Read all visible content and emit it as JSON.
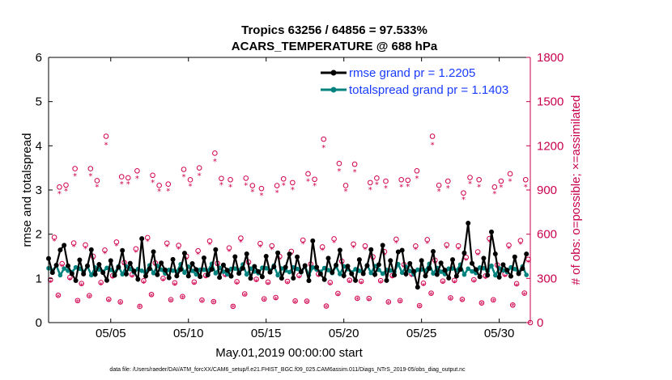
{
  "chart_data": {
    "type": "line",
    "title_line1": "Tropics 63256 / 64856 = 97.533%",
    "title_line2": "ACARS_TEMPERATURE @ 688 hPa",
    "xlabel": "May.01,2019 00:00:00 start",
    "ylabel_left": "rmse and totalspread",
    "ylabel_right": "# of obs: o=possible; ×=assimilated",
    "footer": "data file: /Users/raeder/DAI/ATM_forcXX/CAM6_setup/f.e21.FHIST_BGC.f09_025.CAM6assim.011/Diags_NTrS_2019-05/obs_diag_output.nc",
    "x_range_days": [
      1,
      32
    ],
    "x_ticks": [
      {
        "day": 5,
        "label": "05/05"
      },
      {
        "day": 10,
        "label": "05/10"
      },
      {
        "day": 15,
        "label": "05/15"
      },
      {
        "day": 20,
        "label": "05/20"
      },
      {
        "day": 25,
        "label": "05/25"
      },
      {
        "day": 30,
        "label": "05/30"
      }
    ],
    "ylim_left": [
      0,
      6
    ],
    "yticks_left": [
      "0",
      "1",
      "2",
      "3",
      "4",
      "5",
      "6"
    ],
    "ylim_right": [
      0,
      1800
    ],
    "yticks_right": [
      "0",
      "300",
      "600",
      "900",
      "1200",
      "1500",
      "1800"
    ],
    "legend": [
      {
        "label": "rmse grand pr = 1.2205",
        "color": "#000000"
      },
      {
        "label": "totalspread grand pr = 1.1403",
        "color": "#00827f"
      }
    ],
    "colors": {
      "rmse": "#000000",
      "spread": "#00827f",
      "obs": "#d0004e"
    },
    "rmse_pattern": [
      1.45,
      1.1,
      1.25,
      1.6,
      1.05,
      1.3,
      1.15,
      1.0
    ],
    "spread_pattern": [
      1.2,
      1.15,
      1.3,
      1.1,
      1.25,
      1.18,
      1.12,
      1.22
    ],
    "obs_possible_pattern": [
      290,
      550,
      170,
      420,
      960,
      300,
      510,
      140
    ],
    "obs_assimilated_ratio": 0.96,
    "obs_peaks": [
      {
        "day": 1.7,
        "possible": 920
      },
      {
        "day": 2.7,
        "possible": 1045
      },
      {
        "day": 3.7,
        "possible": 1045
      },
      {
        "day": 4.7,
        "possible": 1265
      },
      {
        "day": 5.7,
        "possible": 990
      },
      {
        "day": 6.7,
        "possible": 1030
      },
      {
        "day": 7.7,
        "possible": 1000
      },
      {
        "day": 8.7,
        "possible": 940
      },
      {
        "day": 9.7,
        "possible": 1040
      },
      {
        "day": 10.7,
        "possible": 1050
      },
      {
        "day": 11.7,
        "possible": 1150
      },
      {
        "day": 12.7,
        "possible": 970
      },
      {
        "day": 13.7,
        "possible": 980
      },
      {
        "day": 14.7,
        "possible": 910
      },
      {
        "day": 15.7,
        "possible": 930
      },
      {
        "day": 16.7,
        "possible": 950
      },
      {
        "day": 17.7,
        "possible": 1010
      },
      {
        "day": 18.7,
        "possible": 1245
      },
      {
        "day": 19.7,
        "possible": 1080
      },
      {
        "day": 20.7,
        "possible": 1075
      },
      {
        "day": 21.7,
        "possible": 950
      },
      {
        "day": 22.7,
        "possible": 960
      },
      {
        "day": 23.7,
        "possible": 970
      },
      {
        "day": 24.7,
        "possible": 1030
      },
      {
        "day": 25.7,
        "possible": 1265
      },
      {
        "day": 26.7,
        "possible": 960
      },
      {
        "day": 27.7,
        "possible": 880
      },
      {
        "day": 28.7,
        "possible": 970
      },
      {
        "day": 29.7,
        "possible": 920
      },
      {
        "day": 30.7,
        "possible": 1010
      },
      {
        "day": 31.7,
        "possible": 970
      }
    ],
    "rmse_spikes": [
      {
        "day": 2.0,
        "value": 1.75
      },
      {
        "day": 7.1,
        "value": 1.9
      },
      {
        "day": 11.7,
        "value": 1.65
      },
      {
        "day": 16.6,
        "value": 1.55
      },
      {
        "day": 18.0,
        "value": 1.85
      },
      {
        "day": 22.4,
        "value": 1.75
      },
      {
        "day": 23.6,
        "value": 1.6
      },
      {
        "day": 28.1,
        "value": 2.25
      },
      {
        "day": 29.4,
        "value": 2.05
      },
      {
        "day": 24.7,
        "value": 0.8
      },
      {
        "day": 17.8,
        "value": 0.95
      }
    ]
  }
}
